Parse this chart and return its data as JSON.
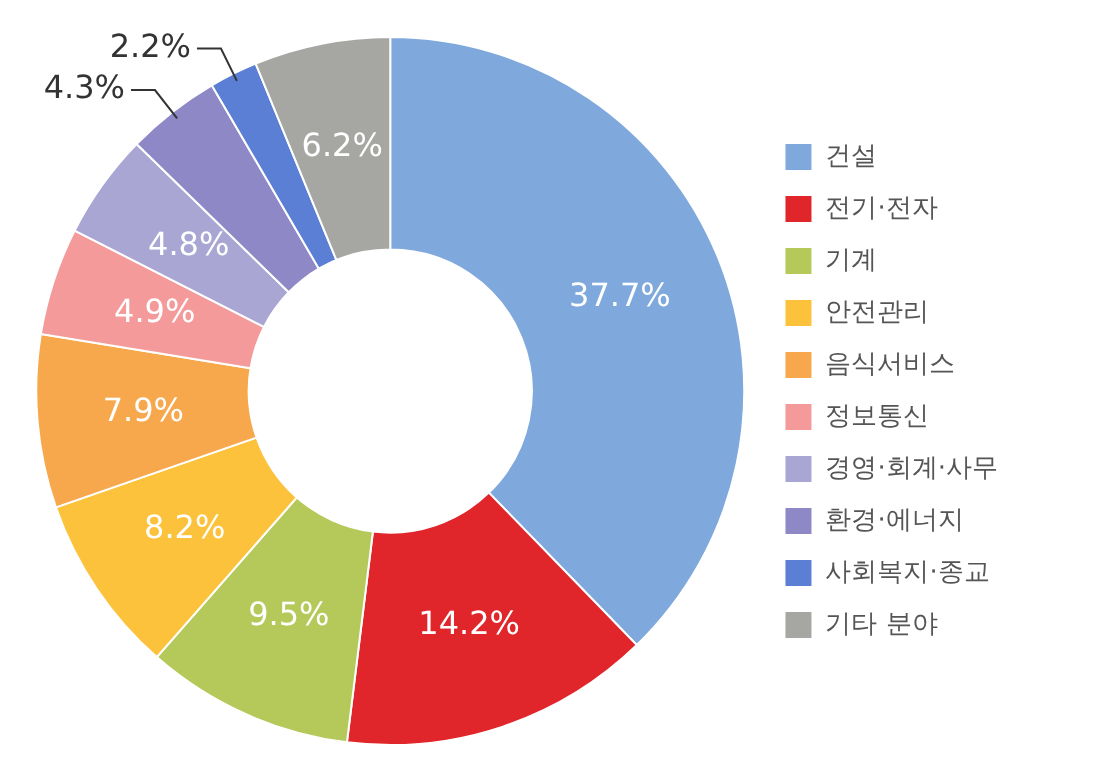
{
  "chart_data": {
    "type": "donut",
    "categories": [
      "건설",
      "전기·전자",
      "기계",
      "안전관리",
      "음식서비스",
      "정보통신",
      "경영·회계·사무",
      "환경·에너지",
      "사회복지·종교",
      "기타 분야"
    ],
    "values": [
      37.7,
      14.2,
      9.5,
      8.2,
      7.9,
      4.9,
      4.8,
      4.3,
      2.2,
      6.2
    ],
    "colors": [
      "#7fa8dc",
      "#e0262a",
      "#b5c95a",
      "#fcc23c",
      "#f7a84c",
      "#f49a9a",
      "#a9a6d4",
      "#8e88c6",
      "#5b7fd4",
      "#a6a6a2"
    ],
    "value_labels": [
      "37.7%",
      "14.2%",
      "9.5%",
      "8.2%",
      "7.9%",
      "4.9%",
      "4.8%",
      "4.3%",
      "2.2%",
      "6.2%"
    ],
    "legend": "right"
  }
}
